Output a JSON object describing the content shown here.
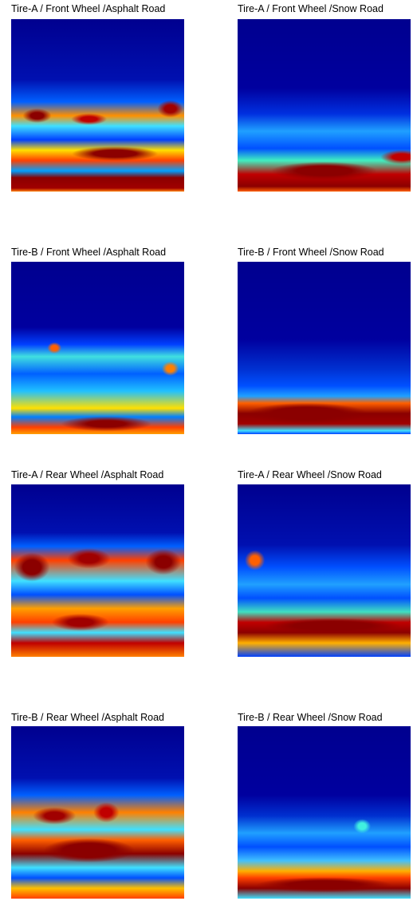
{
  "panels": [
    {
      "title": "Tire-A / Front Wheel /Asphalt Road"
    },
    {
      "title": "Tire-A / Front Wheel /Snow Road"
    },
    {
      "title": "Tire-B / Front Wheel /Asphalt Road"
    },
    {
      "title": "Tire-B / Front Wheel /Snow Road"
    },
    {
      "title": "Tire-A / Rear Wheel /Asphalt Road"
    },
    {
      "title": "Tire-A / Rear Wheel /Snow Road"
    },
    {
      "title": "Tire-B / Rear Wheel /Asphalt Road"
    },
    {
      "title": "Tire-B / Rear Wheel /Snow Road"
    }
  ]
}
